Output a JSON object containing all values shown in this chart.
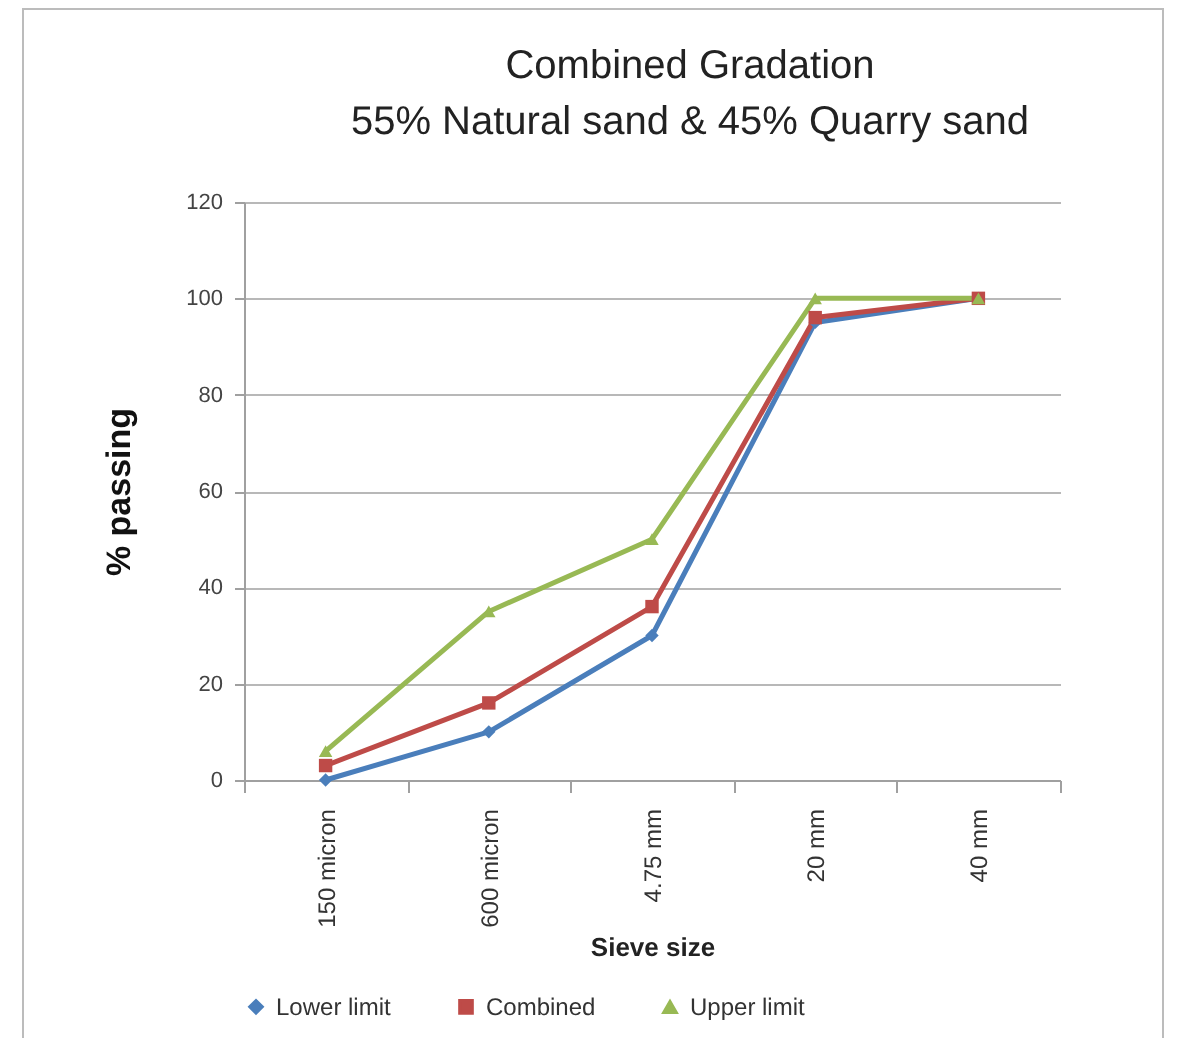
{
  "chart_data": {
    "type": "line",
    "title": [
      "Combined  Gradation",
      "55% Natural sand & 45% Quarry sand"
    ],
    "xlabel": "Sieve size",
    "ylabel": "% passing",
    "categories": [
      "150 micron",
      "600 micron",
      "4.75 mm",
      "20 mm",
      "40 mm"
    ],
    "series": [
      {
        "name": "Lower limit",
        "color": "#4a7ebb",
        "marker": "diamond",
        "values": [
          0,
          10,
          30,
          95,
          100
        ]
      },
      {
        "name": "Combined",
        "color": "#be4b48",
        "marker": "square",
        "values": [
          3,
          16,
          36,
          96,
          100
        ]
      },
      {
        "name": "Upper limit",
        "color": "#98b954",
        "marker": "triangle",
        "values": [
          6,
          35,
          50,
          100,
          100
        ]
      }
    ],
    "ylim": [
      0,
      120
    ],
    "yticks": [
      0,
      20,
      40,
      60,
      80,
      100,
      120
    ],
    "grid": "y",
    "legend": "bottom",
    "line_style": "solid"
  }
}
